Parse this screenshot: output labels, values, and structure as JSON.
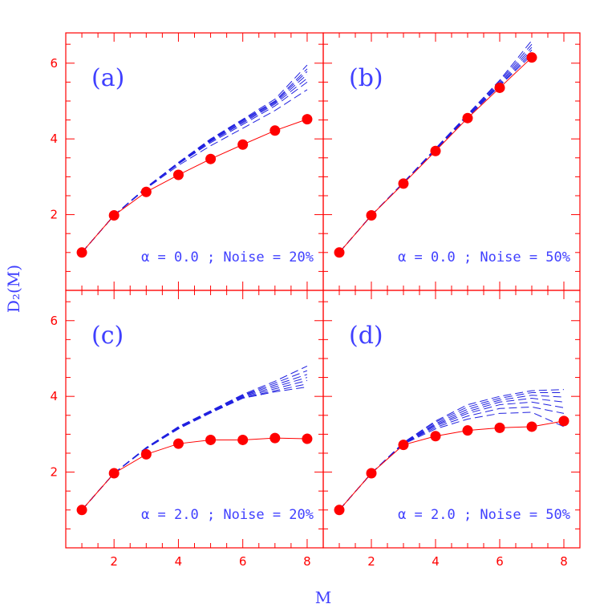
{
  "colors": {
    "frame": "#ff0000",
    "observed": "#ff0000",
    "surrogate": "#2020e0",
    "labels": "#4040ff"
  },
  "xlabel": "M",
  "ylabel": "D₂(M)",
  "chart_data": [
    {
      "type": "line",
      "panel": "(a)",
      "annotation": "α = 0.0 ; Noise = 20%",
      "xlim": [
        0.5,
        8.5
      ],
      "ylim": [
        0.0,
        6.8
      ],
      "xticks": [
        "2",
        "4",
        "6",
        "8"
      ],
      "yticks": [
        "2",
        "4",
        "6"
      ],
      "x": [
        1,
        2,
        3,
        4,
        5,
        6,
        7,
        8
      ],
      "series": [
        {
          "values": [
            1.0,
            1.98,
            2.6,
            3.05,
            3.47,
            3.85,
            4.22,
            4.52
          ]
        },
        {
          "values": [
            1.0,
            1.98,
            2.72,
            3.38,
            4.0,
            4.52,
            5.05,
            5.95
          ],
          "style": "dashed"
        },
        {
          "values": [
            1.0,
            1.98,
            2.72,
            3.37,
            3.98,
            4.5,
            5.0,
            5.85
          ],
          "style": "dashed"
        },
        {
          "values": [
            1.0,
            1.98,
            2.72,
            3.37,
            3.97,
            4.48,
            4.98,
            5.78
          ],
          "style": "dashed"
        },
        {
          "values": [
            1.0,
            1.98,
            2.71,
            3.36,
            3.95,
            4.45,
            4.95,
            5.7
          ],
          "style": "dashed"
        },
        {
          "values": [
            1.0,
            1.98,
            2.71,
            3.35,
            3.93,
            4.42,
            4.92,
            5.6
          ],
          "style": "dashed"
        },
        {
          "values": [
            1.0,
            1.98,
            2.7,
            3.34,
            3.9,
            4.38,
            4.87,
            5.5
          ],
          "style": "dashed"
        },
        {
          "values": [
            1.0,
            1.98,
            2.69,
            3.3,
            3.82,
            4.28,
            4.75,
            5.3
          ],
          "style": "dashed"
        }
      ]
    },
    {
      "type": "line",
      "panel": "(b)",
      "annotation": "α = 0.0 ; Noise = 50%",
      "xlim": [
        0.5,
        8.5
      ],
      "ylim": [
        0.0,
        6.8
      ],
      "xticks": [
        "2",
        "4",
        "6",
        "8"
      ],
      "yticks": [
        "2",
        "4",
        "6"
      ],
      "x": [
        1,
        2,
        3,
        4,
        5,
        6,
        7
      ],
      "series": [
        {
          "values": [
            1.0,
            1.98,
            2.82,
            3.68,
            4.55,
            5.35,
            6.15
          ]
        },
        {
          "values": [
            1.0,
            1.98,
            2.85,
            3.75,
            4.65,
            5.55,
            6.6
          ],
          "style": "dashed"
        },
        {
          "values": [
            1.0,
            1.98,
            2.85,
            3.74,
            4.63,
            5.52,
            6.5
          ],
          "style": "dashed"
        },
        {
          "values": [
            1.0,
            1.98,
            2.84,
            3.73,
            4.61,
            5.48,
            6.42
          ],
          "style": "dashed"
        },
        {
          "values": [
            1.0,
            1.98,
            2.84,
            3.72,
            4.6,
            5.45,
            6.35
          ],
          "style": "dashed"
        },
        {
          "values": [
            1.0,
            1.98,
            2.83,
            3.71,
            4.58,
            5.42,
            6.28
          ],
          "style": "dashed"
        },
        {
          "values": [
            1.0,
            1.98,
            2.83,
            3.7,
            4.57,
            5.4,
            6.22
          ],
          "style": "dashed"
        }
      ]
    },
    {
      "type": "line",
      "panel": "(c)",
      "annotation": "α = 2.0 ; Noise = 20%",
      "xlim": [
        0.5,
        8.5
      ],
      "ylim": [
        0.0,
        6.8
      ],
      "xticks": [
        "2",
        "4",
        "6",
        "8"
      ],
      "yticks": [
        "2",
        "4",
        "6"
      ],
      "x": [
        1,
        2,
        3,
        4,
        5,
        6,
        7,
        8
      ],
      "series": [
        {
          "values": [
            1.0,
            1.97,
            2.47,
            2.75,
            2.85,
            2.85,
            2.9,
            2.88
          ]
        },
        {
          "values": [
            1.0,
            1.97,
            2.65,
            3.2,
            3.62,
            4.05,
            4.4,
            4.8
          ],
          "style": "dashed"
        },
        {
          "values": [
            1.0,
            1.97,
            2.64,
            3.19,
            3.61,
            4.03,
            4.35,
            4.68
          ],
          "style": "dashed"
        },
        {
          "values": [
            1.0,
            1.97,
            2.64,
            3.18,
            3.6,
            4.02,
            4.3,
            4.58
          ],
          "style": "dashed"
        },
        {
          "values": [
            1.0,
            1.97,
            2.63,
            3.17,
            3.59,
            4.0,
            4.25,
            4.5
          ],
          "style": "dashed"
        },
        {
          "values": [
            1.0,
            1.97,
            2.63,
            3.16,
            3.58,
            3.98,
            4.2,
            4.42
          ],
          "style": "dashed"
        },
        {
          "values": [
            1.0,
            1.97,
            2.62,
            3.15,
            3.57,
            3.96,
            4.15,
            4.33
          ],
          "style": "dashed"
        },
        {
          "values": [
            1.0,
            1.97,
            2.62,
            3.14,
            3.56,
            3.95,
            4.12,
            4.25
          ],
          "style": "dashed"
        }
      ]
    },
    {
      "type": "line",
      "panel": "(d)",
      "annotation": "α = 2.0 ; Noise = 50%",
      "xlim": [
        0.5,
        8.5
      ],
      "ylim": [
        0.0,
        6.8
      ],
      "xticks": [
        "2",
        "4",
        "6",
        "8"
      ],
      "yticks": [
        "2",
        "4",
        "6"
      ],
      "x": [
        1,
        2,
        3,
        4,
        5,
        6,
        7,
        8
      ],
      "series": [
        {
          "values": [
            1.0,
            1.97,
            2.72,
            2.95,
            3.1,
            3.17,
            3.2,
            3.35
          ]
        },
        {
          "values": [
            1.0,
            1.97,
            2.78,
            3.35,
            3.78,
            4.0,
            4.15,
            4.18
          ],
          "style": "dashed"
        },
        {
          "values": [
            1.0,
            1.97,
            2.77,
            3.32,
            3.72,
            3.95,
            4.1,
            4.1
          ],
          "style": "dashed"
        },
        {
          "values": [
            1.0,
            1.97,
            2.76,
            3.28,
            3.66,
            3.9,
            4.03,
            3.98
          ],
          "style": "dashed"
        },
        {
          "values": [
            1.0,
            1.97,
            2.76,
            3.25,
            3.6,
            3.85,
            3.95,
            3.85
          ],
          "style": "dashed"
        },
        {
          "values": [
            1.0,
            1.97,
            2.75,
            3.22,
            3.55,
            3.78,
            3.85,
            3.7
          ],
          "style": "dashed"
        },
        {
          "values": [
            1.0,
            1.97,
            2.75,
            3.18,
            3.48,
            3.68,
            3.72,
            3.55
          ],
          "style": "dashed"
        },
        {
          "values": [
            1.0,
            1.97,
            2.74,
            3.14,
            3.4,
            3.55,
            3.58,
            3.2
          ],
          "style": "dashed"
        }
      ]
    }
  ]
}
